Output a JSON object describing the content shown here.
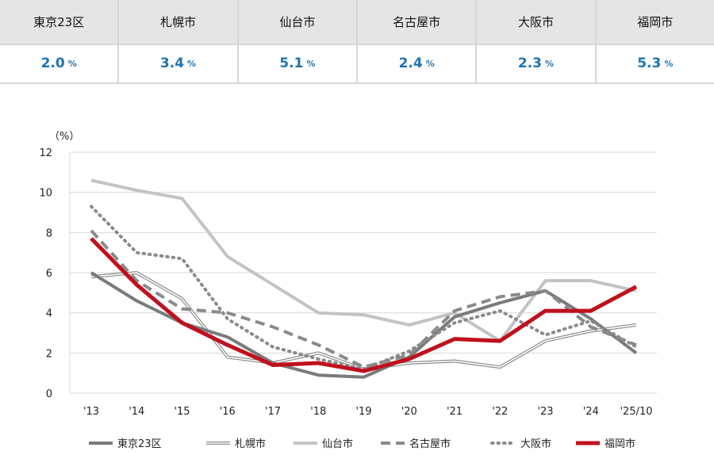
{
  "rates": [
    {
      "city": "東京23区",
      "value": "2.0",
      "unit": "%"
    },
    {
      "city": "札幌市",
      "value": "3.4",
      "unit": "%"
    },
    {
      "city": "仙台市",
      "value": "5.1",
      "unit": "%"
    },
    {
      "city": "名古屋市",
      "value": "2.4",
      "unit": "%"
    },
    {
      "city": "大阪市",
      "value": "2.3",
      "unit": "%"
    },
    {
      "city": "福岡市",
      "value": "5.3",
      "unit": "%"
    }
  ],
  "chart_data": {
    "type": "line",
    "title": "",
    "xlabel": "",
    "ylabel": "（%）",
    "ylim": [
      0,
      12
    ],
    "yticks": [
      0,
      2,
      4,
      6,
      8,
      10,
      12
    ],
    "grid": true,
    "legend_position": "bottom",
    "categories": [
      "'13",
      "'14",
      "'15",
      "'16",
      "'17",
      "'18",
      "'19",
      "'20",
      "'21",
      "'22",
      "'23",
      "'24",
      "'25/10"
    ],
    "series": [
      {
        "name": "東京23区",
        "color": "#7a7a7a",
        "style": "solid-thick",
        "values": [
          6.0,
          4.6,
          3.5,
          2.8,
          1.5,
          0.9,
          0.8,
          1.8,
          3.8,
          4.5,
          5.1,
          3.7,
          2.0
        ]
      },
      {
        "name": "札幌市",
        "color": "#8c8c8c",
        "style": "double",
        "values": [
          5.8,
          6.0,
          4.7,
          1.8,
          1.5,
          2.0,
          1.2,
          1.5,
          1.6,
          1.3,
          2.6,
          3.1,
          3.4
        ]
      },
      {
        "name": "仙台市",
        "color": "#c3c3c3",
        "style": "solid-light",
        "values": [
          10.6,
          10.1,
          9.7,
          6.8,
          5.4,
          4.0,
          3.9,
          3.4,
          4.0,
          2.6,
          5.6,
          5.6,
          5.1
        ]
      },
      {
        "name": "名古屋市",
        "color": "#8a8a8a",
        "style": "dashed",
        "values": [
          8.1,
          5.6,
          4.2,
          4.0,
          3.3,
          2.4,
          1.3,
          1.9,
          4.1,
          4.8,
          5.1,
          3.3,
          2.4
        ]
      },
      {
        "name": "大阪市",
        "color": "#8a8a8a",
        "style": "dotted",
        "values": [
          9.3,
          7.0,
          6.7,
          3.7,
          2.3,
          1.7,
          1.2,
          2.1,
          3.5,
          4.1,
          2.9,
          3.6,
          2.3
        ]
      },
      {
        "name": "福岡市",
        "color": "#c0101e",
        "style": "solid-bold",
        "values": [
          7.7,
          5.4,
          3.5,
          2.4,
          1.4,
          1.5,
          1.1,
          1.7,
          2.7,
          2.6,
          4.1,
          4.1,
          5.3
        ]
      }
    ]
  }
}
